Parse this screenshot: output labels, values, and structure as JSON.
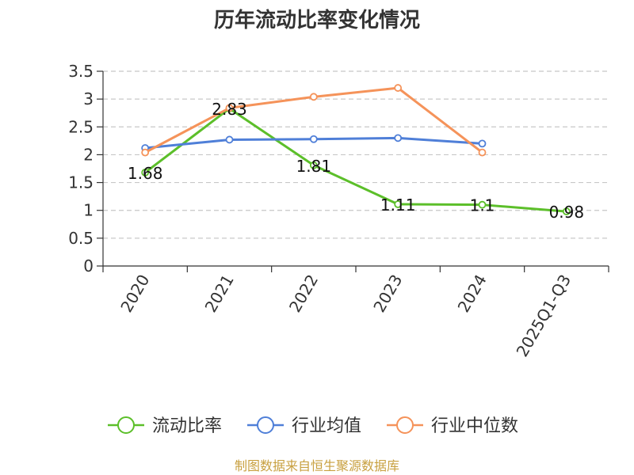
{
  "chart_data": {
    "type": "line",
    "title": "历年流动比率变化情况",
    "categories": [
      "2020",
      "2021",
      "2022",
      "2023",
      "2024",
      "2025Q1-Q3"
    ],
    "ylim": [
      0,
      3.5
    ],
    "yticks": [
      "0",
      "0.5",
      "1",
      "1.5",
      "2",
      "2.5",
      "3",
      "3.5"
    ],
    "grid": true,
    "legend_position": "bottom",
    "series": [
      {
        "name": "流动比率",
        "color": "#5cbf2a",
        "values": [
          1.68,
          2.83,
          1.81,
          1.11,
          1.1,
          0.98
        ],
        "labels": [
          "1.68",
          "2.83",
          "1.81",
          "1.11",
          "1.1",
          "0.98"
        ]
      },
      {
        "name": "行业均值",
        "color": "#4f7fd8",
        "values": [
          2.12,
          2.27,
          2.28,
          2.3,
          2.2,
          null
        ]
      },
      {
        "name": "行业中位数",
        "color": "#f5935a",
        "values": [
          2.04,
          2.84,
          3.04,
          3.2,
          2.04,
          null
        ]
      }
    ]
  },
  "source": "制图数据来自恒生聚源数据库"
}
